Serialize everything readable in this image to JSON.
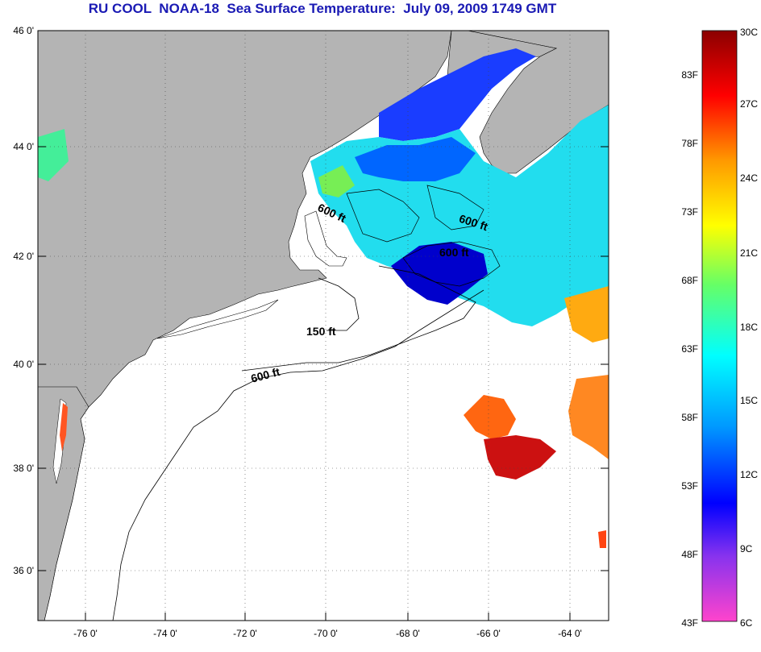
{
  "title": "RU COOL  NOAA-18  Sea Surface Temperature:  July 09, 2009 1749 GMT",
  "map": {
    "lon_range": [
      -77,
      -63
    ],
    "lat_range": [
      35,
      46
    ],
    "lat_ticks": [
      "46 0'",
      "44 0'",
      "42 0'",
      "40 0'",
      "38 0'",
      "36 0'"
    ],
    "lon_ticks": [
      "-76 0'",
      "-74 0'",
      "-72 0'",
      "-70 0'",
      "-68 0'",
      "-66 0'",
      "-64 0'"
    ],
    "land_color": "#b4b4b4",
    "contour_labels": [
      "600 ft",
      "600 ft",
      "600 ft",
      "150 ft",
      "600 ft"
    ]
  },
  "colorbar": {
    "fahrenheit_labels": [
      "83F",
      "78F",
      "73F",
      "68F",
      "63F",
      "58F",
      "53F",
      "48F",
      "43F"
    ],
    "celsius_labels": [
      "30C",
      "27C",
      "24C",
      "21C",
      "18C",
      "15C",
      "12C",
      "9C",
      "6C"
    ],
    "colors": [
      "#ff33cc",
      "#8833ee",
      "#0000ff",
      "#0099ff",
      "#00ffff",
      "#66ff66",
      "#ffff00",
      "#ff9900",
      "#ff0000",
      "#8b0000"
    ]
  }
}
